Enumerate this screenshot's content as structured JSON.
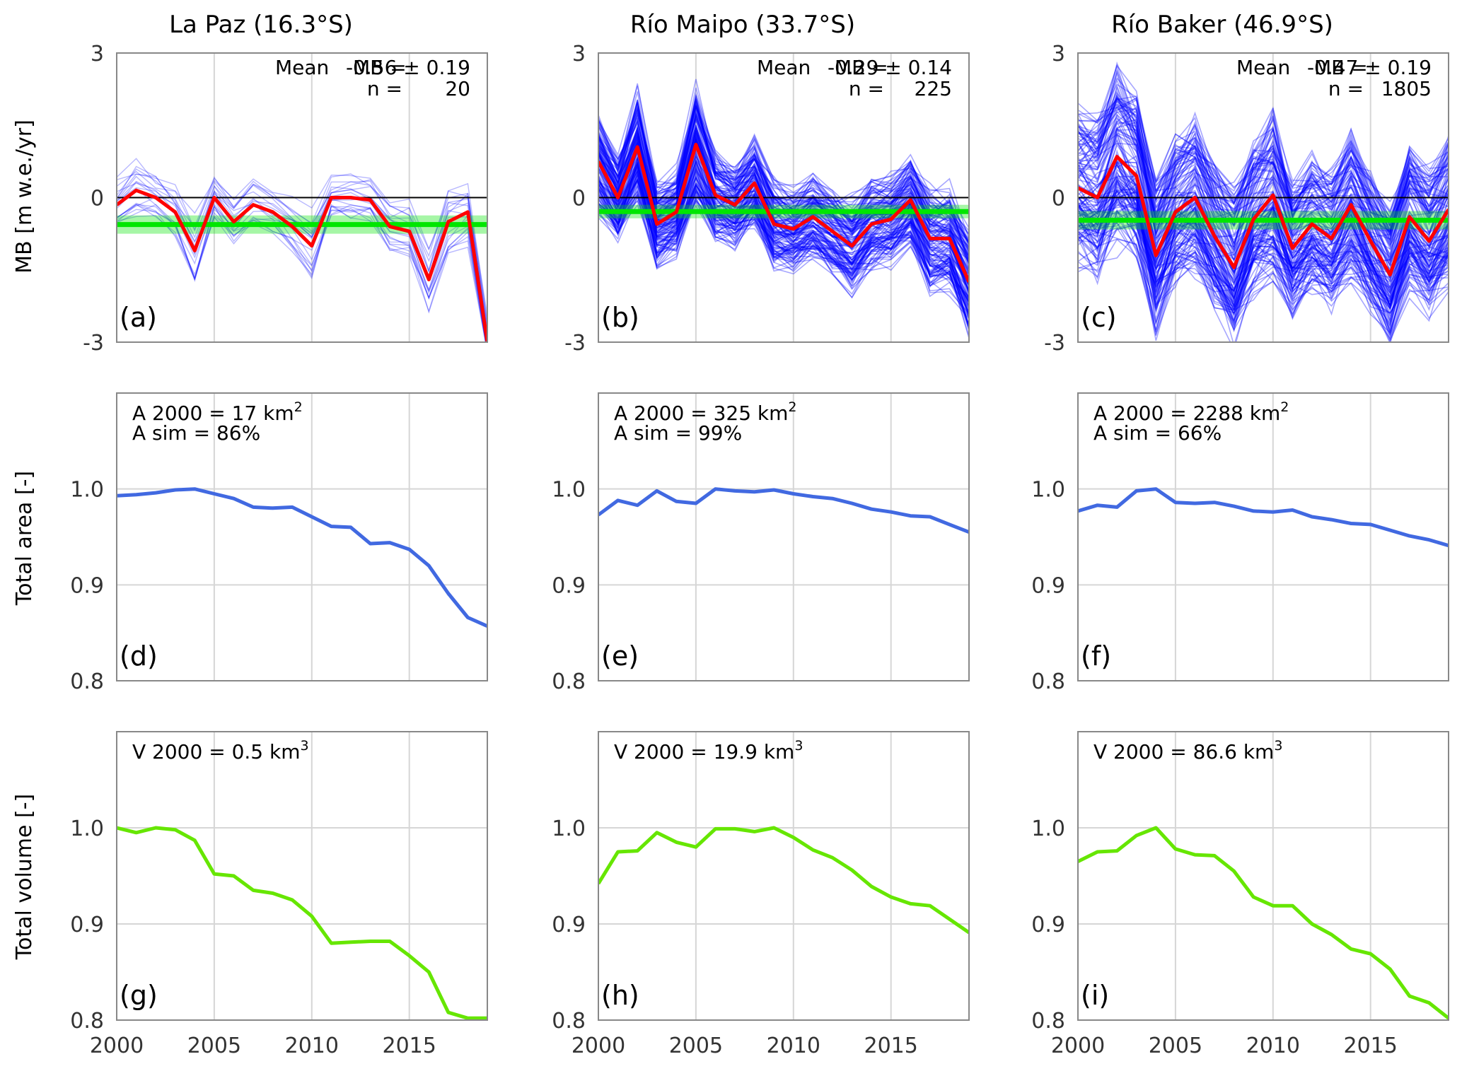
{
  "columns": [
    {
      "title": "La Paz (16.3°S)"
    },
    {
      "title": "Río Maipo (33.7°S)"
    },
    {
      "title": "Río Baker (46.9°S)"
    }
  ],
  "row_ylabels": [
    "MB [m w.e./yr]",
    "Total area [-]",
    "Total volume [-]"
  ],
  "colors": {
    "ensemble": "#0000ff",
    "mean_mb": "#ff0000",
    "mean_band": "#00e600",
    "area": "#4169e1",
    "volume": "#66e600",
    "zero_line": "#000000",
    "grid": "#d6d6d6",
    "frame": "#888888"
  },
  "chart_data": [
    {
      "panel": "(a)",
      "type": "line",
      "ylabel": "MB [m w.e./yr]",
      "x": [
        2000,
        2001,
        2002,
        2003,
        2004,
        2005,
        2006,
        2007,
        2008,
        2009,
        2010,
        2011,
        2012,
        2013,
        2014,
        2015,
        2016,
        2017,
        2018,
        2019
      ],
      "xlim": [
        2000,
        2019
      ],
      "ylim": [
        -3,
        3
      ],
      "xticks": [
        2000,
        2005,
        2010,
        2015
      ],
      "yticks": [
        3,
        0,
        -3
      ],
      "annotation": {
        "line1_label": "Mean",
        "line1_key": "MB =",
        "line1_value": "-0.56 ± 0.19",
        "line2_key": "n =",
        "line2_value": "20"
      },
      "mean": -0.56,
      "mean_std": 0.19,
      "n": 20,
      "series_mean": [
        -0.15,
        0.15,
        0.0,
        -0.3,
        -1.1,
        0.0,
        -0.5,
        -0.15,
        -0.3,
        -0.6,
        -1.0,
        0.0,
        0.0,
        -0.05,
        -0.6,
        -0.7,
        -1.7,
        -0.5,
        -0.3,
        -3.0
      ],
      "ensemble_spread": [
        0.55,
        0.65,
        0.55,
        0.6,
        0.8,
        0.55,
        0.6,
        0.55,
        0.55,
        0.6,
        0.8,
        0.5,
        0.5,
        0.55,
        0.6,
        0.65,
        0.8,
        0.8,
        0.8,
        0.6
      ],
      "ensemble_count": 20
    },
    {
      "panel": "(b)",
      "type": "line",
      "x": [
        2000,
        2001,
        2002,
        2003,
        2004,
        2005,
        2006,
        2007,
        2008,
        2009,
        2010,
        2011,
        2012,
        2013,
        2014,
        2015,
        2016,
        2017,
        2018,
        2019
      ],
      "xlim": [
        2000,
        2019
      ],
      "ylim": [
        -3,
        3
      ],
      "xticks": [
        2000,
        2005,
        2010,
        2015
      ],
      "yticks": [
        3,
        0,
        -3
      ],
      "annotation": {
        "line1_label": "Mean",
        "line1_key": "MB =",
        "line1_value": "-0.29 ± 0.14",
        "line2_key": "n =",
        "line2_value": "225"
      },
      "mean": -0.29,
      "mean_std": 0.14,
      "n": 225,
      "series_mean": [
        0.75,
        0.0,
        1.05,
        -0.55,
        -0.3,
        1.1,
        0.05,
        -0.15,
        0.3,
        -0.55,
        -0.65,
        -0.4,
        -0.7,
        -1.0,
        -0.55,
        -0.45,
        -0.05,
        -0.85,
        -0.85,
        -1.75
      ],
      "ensemble_spread": [
        1.1,
        0.9,
        1.2,
        0.9,
        0.9,
        1.25,
        1.0,
        0.9,
        0.95,
        0.9,
        0.85,
        0.85,
        0.9,
        1.0,
        0.95,
        0.95,
        0.9,
        1.1,
        1.1,
        1.2
      ],
      "ensemble_count": 225
    },
    {
      "panel": "(c)",
      "type": "line",
      "x": [
        2000,
        2001,
        2002,
        2003,
        2004,
        2005,
        2006,
        2007,
        2008,
        2009,
        2010,
        2011,
        2012,
        2013,
        2014,
        2015,
        2016,
        2017,
        2018,
        2019
      ],
      "xlim": [
        2000,
        2019
      ],
      "ylim": [
        -3,
        3
      ],
      "xticks": [
        2000,
        2005,
        2010,
        2015
      ],
      "yticks": [
        3,
        0,
        -3
      ],
      "annotation": {
        "line1_label": "Mean",
        "line1_key": "MB =",
        "line1_value": "-0.47 ± 0.19",
        "line2_key": "n =",
        "line2_value": "1805"
      },
      "mean": -0.47,
      "mean_std": 0.19,
      "n": 1805,
      "series_mean": [
        0.2,
        0.0,
        0.85,
        0.45,
        -1.2,
        -0.3,
        0.0,
        -0.8,
        -1.45,
        -0.45,
        0.05,
        -1.05,
        -0.55,
        -0.85,
        -0.15,
        -0.9,
        -1.6,
        -0.4,
        -0.9,
        -0.25
      ],
      "ensemble_spread": [
        1.6,
        1.7,
        1.9,
        1.7,
        1.6,
        1.5,
        1.6,
        1.5,
        1.6,
        1.5,
        1.7,
        1.4,
        1.4,
        1.4,
        1.5,
        1.4,
        1.4,
        1.5,
        1.5,
        1.6
      ],
      "ensemble_count": 1805
    },
    {
      "panel": "(d)",
      "type": "line",
      "ylabel": "Total area [-]",
      "x": [
        2000,
        2001,
        2002,
        2003,
        2004,
        2005,
        2006,
        2007,
        2008,
        2009,
        2010,
        2011,
        2012,
        2013,
        2014,
        2015,
        2016,
        2017,
        2018,
        2019
      ],
      "xlim": [
        2000,
        2019
      ],
      "ylim": [
        0.8,
        1.1
      ],
      "xticks": [
        2000,
        2005,
        2010,
        2015
      ],
      "yticks": [
        1.0,
        0.9,
        0.8
      ],
      "annotation": {
        "line1_prefix": "A 2000 = 17 km",
        "line1_sup": "2",
        "line2": "A sim = 86%"
      },
      "values": [
        0.993,
        0.994,
        0.996,
        0.999,
        1.0,
        0.995,
        0.99,
        0.981,
        0.98,
        0.981,
        0.971,
        0.961,
        0.96,
        0.943,
        0.944,
        0.937,
        0.92,
        0.891,
        0.866,
        0.857
      ]
    },
    {
      "panel": "(e)",
      "type": "line",
      "x": [
        2000,
        2001,
        2002,
        2003,
        2004,
        2005,
        2006,
        2007,
        2008,
        2009,
        2010,
        2011,
        2012,
        2013,
        2014,
        2015,
        2016,
        2017,
        2018,
        2019
      ],
      "xlim": [
        2000,
        2019
      ],
      "ylim": [
        0.8,
        1.1
      ],
      "xticks": [
        2000,
        2005,
        2010,
        2015
      ],
      "yticks": [
        1.0,
        0.9,
        0.8
      ],
      "annotation": {
        "line1_prefix": "A 2000 = 325 km",
        "line1_sup": "2",
        "line2": "A sim = 99%"
      },
      "values": [
        0.973,
        0.988,
        0.983,
        0.998,
        0.987,
        0.985,
        1.0,
        0.998,
        0.997,
        0.999,
        0.995,
        0.992,
        0.99,
        0.985,
        0.979,
        0.976,
        0.972,
        0.971,
        0.963,
        0.955
      ]
    },
    {
      "panel": "(f)",
      "type": "line",
      "x": [
        2000,
        2001,
        2002,
        2003,
        2004,
        2005,
        2006,
        2007,
        2008,
        2009,
        2010,
        2011,
        2012,
        2013,
        2014,
        2015,
        2016,
        2017,
        2018,
        2019
      ],
      "xlim": [
        2000,
        2019
      ],
      "ylim": [
        0.8,
        1.1
      ],
      "xticks": [
        2000,
        2005,
        2010,
        2015
      ],
      "yticks": [
        1.0,
        0.9,
        0.8
      ],
      "annotation": {
        "line1_prefix": "A 2000 = 2288 km",
        "line1_sup": "2",
        "line2": "A sim = 66%"
      },
      "values": [
        0.977,
        0.983,
        0.981,
        0.998,
        1.0,
        0.986,
        0.985,
        0.986,
        0.982,
        0.977,
        0.976,
        0.978,
        0.971,
        0.968,
        0.964,
        0.963,
        0.957,
        0.951,
        0.947,
        0.941
      ]
    },
    {
      "panel": "(g)",
      "type": "line",
      "ylabel": "Total volume [-]",
      "x": [
        2000,
        2001,
        2002,
        2003,
        2004,
        2005,
        2006,
        2007,
        2008,
        2009,
        2010,
        2011,
        2012,
        2013,
        2014,
        2015,
        2016,
        2017,
        2018,
        2019
      ],
      "xlim": [
        2000,
        2019
      ],
      "ylim": [
        0.8,
        1.1
      ],
      "xticks": [
        2000,
        2005,
        2010,
        2015
      ],
      "yticks": [
        1.0,
        0.9,
        0.8
      ],
      "annotation": {
        "line1_prefix": "V 2000 = 0.5 km",
        "line1_sup": "3"
      },
      "values": [
        1.0,
        0.995,
        1.0,
        0.998,
        0.987,
        0.952,
        0.95,
        0.935,
        0.932,
        0.925,
        0.908,
        0.88,
        0.881,
        0.882,
        0.882,
        0.867,
        0.85,
        0.808,
        0.802,
        0.802
      ]
    },
    {
      "panel": "(h)",
      "type": "line",
      "x": [
        2000,
        2001,
        2002,
        2003,
        2004,
        2005,
        2006,
        2007,
        2008,
        2009,
        2010,
        2011,
        2012,
        2013,
        2014,
        2015,
        2016,
        2017,
        2018,
        2019
      ],
      "xlim": [
        2000,
        2019
      ],
      "ylim": [
        0.8,
        1.1
      ],
      "xticks": [
        2000,
        2005,
        2010,
        2015
      ],
      "yticks": [
        1.0,
        0.9,
        0.8
      ],
      "annotation": {
        "line1_prefix": "V 2000 = 19.9 km",
        "line1_sup": "3"
      },
      "values": [
        0.942,
        0.975,
        0.976,
        0.995,
        0.985,
        0.98,
        0.999,
        0.999,
        0.996,
        1.0,
        0.99,
        0.977,
        0.969,
        0.956,
        0.939,
        0.928,
        0.921,
        0.919,
        0.905,
        0.891
      ]
    },
    {
      "panel": "(i)",
      "type": "line",
      "x": [
        2000,
        2001,
        2002,
        2003,
        2004,
        2005,
        2006,
        2007,
        2008,
        2009,
        2010,
        2011,
        2012,
        2013,
        2014,
        2015,
        2016,
        2017,
        2018,
        2019
      ],
      "xlim": [
        2000,
        2019
      ],
      "ylim": [
        0.8,
        1.1
      ],
      "xticks": [
        2000,
        2005,
        2010,
        2015
      ],
      "yticks": [
        1.0,
        0.9,
        0.8
      ],
      "annotation": {
        "line1_prefix": "V 2000 = 86.6 km",
        "line1_sup": "3"
      },
      "values": [
        0.965,
        0.975,
        0.976,
        0.992,
        1.0,
        0.978,
        0.972,
        0.971,
        0.955,
        0.928,
        0.919,
        0.919,
        0.9,
        0.889,
        0.874,
        0.869,
        0.853,
        0.825,
        0.818,
        0.802
      ]
    }
  ]
}
